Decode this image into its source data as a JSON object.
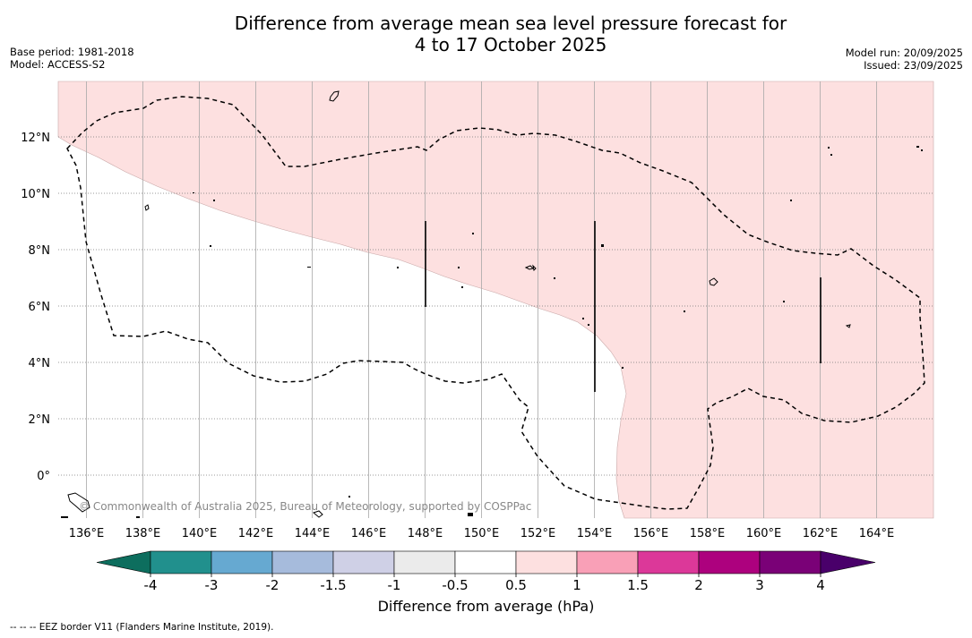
{
  "header": {
    "title_line1": "Difference from average mean sea level pressure forecast for",
    "title_line2": "4 to 17 October 2025",
    "base_period": "Base period: 1981-2018",
    "model": "Model: ACCESS-S2",
    "model_run": "Model run: 20/09/2025",
    "issued": "Issued: 23/09/2025"
  },
  "map": {
    "lon_labels": [
      "136°E",
      "138°E",
      "140°E",
      "142°E",
      "144°E",
      "146°E",
      "148°E",
      "150°E",
      "152°E",
      "154°E",
      "156°E",
      "158°E",
      "160°E",
      "162°E",
      "164°E"
    ],
    "lat_labels": [
      "12°N",
      "10°N",
      "8°N",
      "6°N",
      "4°N",
      "2°N",
      "0°"
    ],
    "lon_values": [
      136,
      138,
      140,
      142,
      144,
      146,
      148,
      150,
      152,
      154,
      156,
      158,
      160,
      162,
      164
    ],
    "lat_values": [
      12,
      10,
      8,
      6,
      4,
      2,
      0
    ],
    "copyright": "© Commonwealth of Australia 2025, Bureau of Meteorology, supported by COSPPac",
    "shading_color": "#fde0e0"
  },
  "colorbar": {
    "ticks": [
      "-4",
      "-3",
      "-2",
      "-1.5",
      "-1",
      "-0.5",
      "0.5",
      "1",
      "1.5",
      "2",
      "3",
      "4"
    ],
    "colors": [
      "#21908d",
      "#66a9d1",
      "#a6bbdc",
      "#cfd0e6",
      "#ebebeb",
      "#ffffff",
      "#fde0e0",
      "#f9a0b7",
      "#dc3899",
      "#ad017e",
      "#7a0177"
    ],
    "low_extend_color": "#0d6e5e",
    "high_extend_color": "#49006a",
    "label": "Difference from average (hPa)"
  },
  "footnote": "--  --  -- EEZ border V11 (Flanders Marine Institute, 2019)."
}
